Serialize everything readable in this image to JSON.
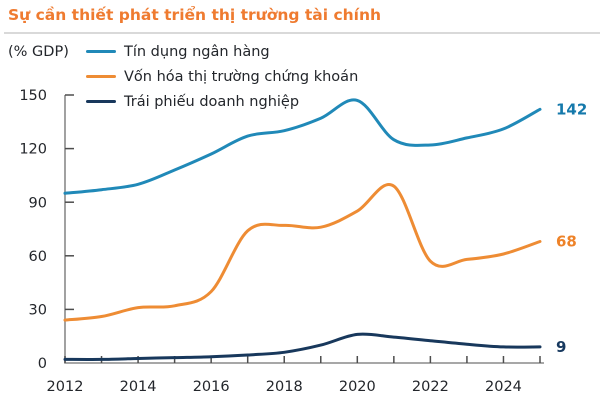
{
  "header": {
    "title": "Sự cần thiết phát triển thị trường tài chính",
    "title_color": "#EF7B30",
    "divider_color": "#D9D9D9"
  },
  "chart_data": {
    "type": "line",
    "title": "Sự cần thiết phát triển thị trường tài chính",
    "unit_label": "(% GDP)",
    "x": [
      2012,
      2013,
      2014,
      2015,
      2016,
      2017,
      2018,
      2019,
      2020,
      2021,
      2022,
      2023,
      2024,
      2025
    ],
    "x_labeled_years": [
      2012,
      2014,
      2016,
      2018,
      2020,
      2022,
      2024
    ],
    "ylim": [
      0,
      150
    ],
    "yticks": [
      0,
      30,
      60,
      90,
      120,
      150
    ],
    "grid": false,
    "legend_position": "top-left",
    "smoothed": true,
    "axis_color": "#8a8a8a",
    "tick_color": "#4d4d4d",
    "text_color": "#23262b",
    "series": [
      {
        "name": "Tín dụng ngân hàng",
        "color": "#2089B8",
        "end_label": "142",
        "end_label_color": "#1579AB",
        "values": [
          95,
          97,
          100,
          108,
          117,
          127,
          130,
          137,
          147,
          125,
          122,
          126,
          131,
          142
        ]
      },
      {
        "name": "Vốn hóa thị trường chứng khoán",
        "color": "#EE8C34",
        "end_label": "68",
        "end_label_color": "#EE8228",
        "values": [
          24,
          26,
          31,
          32,
          40,
          74,
          77,
          76,
          85,
          99,
          57,
          58,
          61,
          68
        ]
      },
      {
        "name": "Trái phiếu doanh nghiệp",
        "color": "#18385C",
        "end_label": "9",
        "end_label_color": "#17395F",
        "values": [
          2,
          2,
          2.5,
          3,
          3.5,
          4.5,
          6,
          10,
          16,
          14.5,
          12.5,
          10.5,
          9,
          9
        ]
      }
    ]
  }
}
